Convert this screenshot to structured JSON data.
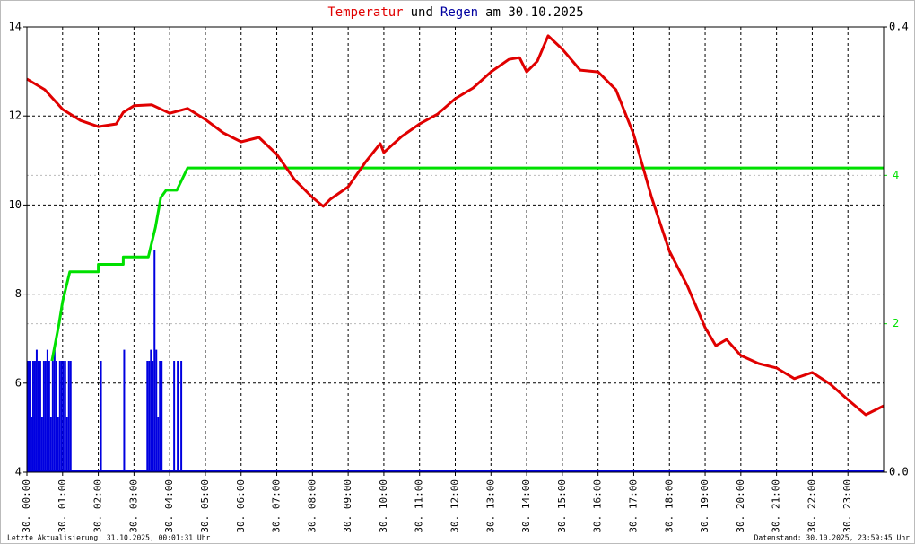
{
  "chart_data": {
    "type": "line",
    "title": {
      "parts": [
        {
          "text": "Temperatur",
          "color": "#e00000"
        },
        {
          "text": "und",
          "color": "#000000"
        },
        {
          "text": "Regen",
          "color": "#0000a0"
        },
        {
          "text": "am 30.10.2025",
          "color": "#000000"
        }
      ]
    },
    "xlim": [
      0,
      24
    ],
    "xticks": [
      {
        "value": 0,
        "label": "30. 00:00"
      },
      {
        "value": 1,
        "label": "30. 01:00"
      },
      {
        "value": 2,
        "label": "30. 02:00"
      },
      {
        "value": 3,
        "label": "30. 03:00"
      },
      {
        "value": 4,
        "label": "30. 04:00"
      },
      {
        "value": 5,
        "label": "30. 05:00"
      },
      {
        "value": 6,
        "label": "30. 06:00"
      },
      {
        "value": 7,
        "label": "30. 07:00"
      },
      {
        "value": 8,
        "label": "30. 08:00"
      },
      {
        "value": 9,
        "label": "30. 09:00"
      },
      {
        "value": 10,
        "label": "30. 10:00"
      },
      {
        "value": 11,
        "label": "30. 11:00"
      },
      {
        "value": 12,
        "label": "30. 12:00"
      },
      {
        "value": 13,
        "label": "30. 13:00"
      },
      {
        "value": 14,
        "label": "30. 14:00"
      },
      {
        "value": 15,
        "label": "30. 15:00"
      },
      {
        "value": 16,
        "label": "30. 16:00"
      },
      {
        "value": 17,
        "label": "30. 17:00"
      },
      {
        "value": 18,
        "label": "30. 18:00"
      },
      {
        "value": 19,
        "label": "30. 19:00"
      },
      {
        "value": 20,
        "label": "30. 20:00"
      },
      {
        "value": 21,
        "label": "30. 21:00"
      },
      {
        "value": 22,
        "label": "30. 22:00"
      },
      {
        "value": 23,
        "label": "30. 23:00"
      }
    ],
    "ylim": [
      4,
      14
    ],
    "yticks": [
      4,
      6,
      8,
      10,
      12,
      14
    ],
    "y2lim": [
      0,
      0.4
    ],
    "y2ticks": [
      {
        "value": 0,
        "label": "0.0"
      },
      {
        "value": 0.4,
        "label": "0.4"
      }
    ],
    "y3lim": [
      0,
      6
    ],
    "y3ticks": [
      2,
      4
    ],
    "y3color": "#00e000",
    "grid": true,
    "series": [
      {
        "type": "line",
        "axis": "y",
        "color": "#e00000",
        "x": [
          0,
          0.5,
          1,
          1.5,
          2,
          2.5,
          2.7,
          3,
          3.5,
          4,
          4.5,
          5,
          5.5,
          6,
          6.5,
          7,
          7.5,
          8,
          8.3,
          8.5,
          9,
          9.5,
          9.9,
          10,
          10.5,
          11,
          11.5,
          12,
          12.5,
          13,
          13.5,
          13.8,
          14,
          14.3,
          14.6,
          15,
          15.5,
          16,
          16.5,
          17,
          17.5,
          18,
          18.5,
          19,
          19.3,
          19.6,
          20,
          20.5,
          21,
          21.5,
          22,
          22.5,
          23,
          23.5,
          24
        ],
        "values": [
          12.83,
          12.59,
          12.15,
          11.9,
          11.76,
          11.82,
          12.08,
          12.23,
          12.25,
          12.06,
          12.17,
          11.92,
          11.62,
          11.42,
          11.52,
          11.14,
          10.57,
          10.17,
          9.97,
          10.13,
          10.41,
          10.98,
          11.38,
          11.18,
          11.54,
          11.82,
          12.04,
          12.39,
          12.63,
          12.99,
          13.27,
          13.31,
          12.99,
          13.23,
          13.8,
          13.5,
          13.03,
          12.99,
          12.59,
          11.58,
          10.17,
          8.96,
          8.19,
          7.25,
          6.84,
          6.98,
          6.62,
          6.44,
          6.34,
          6.1,
          6.24,
          5.98,
          5.63,
          5.29,
          5.49
        ]
      },
      {
        "type": "bar",
        "axis": "y2",
        "color": "#0000e0",
        "width": 0.05,
        "x": [
          0,
          0.05,
          0.1,
          0.15,
          0.2,
          0.25,
          0.3,
          0.35,
          0.4,
          0.45,
          0.5,
          0.55,
          0.6,
          0.65,
          0.7,
          0.75,
          0.8,
          0.85,
          0.9,
          0.95,
          1,
          1.05,
          1.1,
          1.15,
          1.2,
          2.05,
          2.7,
          3.35,
          3.4,
          3.45,
          3.5,
          3.55,
          3.6,
          3.65,
          3.7,
          3.75,
          4.1,
          4.2,
          4.3
        ],
        "values": [
          0.1,
          0.1,
          0.05,
          0.1,
          0.1,
          0.11,
          0.1,
          0.1,
          0.05,
          0.1,
          0.1,
          0.11,
          0.1,
          0.05,
          0.1,
          0.11,
          0.1,
          0.05,
          0.1,
          0.1,
          0.1,
          0.1,
          0.05,
          0.1,
          0.1,
          0.1,
          0.11,
          0.1,
          0.1,
          0.11,
          0.1,
          0.2,
          0.11,
          0.05,
          0.1,
          0.1,
          0.1,
          0.1,
          0.1
        ]
      },
      {
        "type": "line",
        "axis": "y3",
        "color": "#00e000",
        "x": [
          0.7,
          0.9,
          1,
          1.2,
          2,
          2,
          2.7,
          2.7,
          3.4,
          3.6,
          3.75,
          3.9,
          4.2,
          4.3,
          4.5,
          24
        ],
        "values": [
          1.5,
          2,
          2.3,
          2.7,
          2.7,
          2.8,
          2.8,
          2.9,
          2.9,
          3.3,
          3.7,
          3.8,
          3.8,
          3.9,
          4.1,
          4.1
        ]
      }
    ],
    "footer_left": "Letzte Aktualisierung: 31.10.2025, 00:01:31 Uhr",
    "footer_right": "Datenstand: 30.10.2025, 23:59:45 Uhr"
  }
}
